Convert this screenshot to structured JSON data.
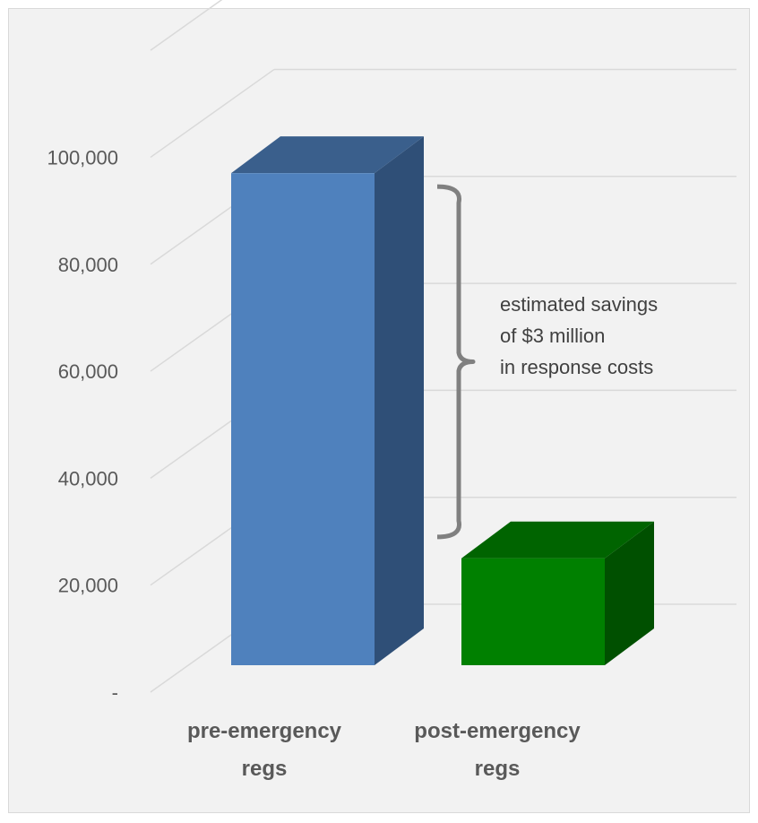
{
  "chart_data": {
    "type": "bar",
    "title": "",
    "xlabel": "",
    "ylabel": "",
    "categories": [
      {
        "line1": "pre-emergency",
        "line2": "regs"
      },
      {
        "line1": "post-emergency",
        "line2": "regs"
      }
    ],
    "values": [
      92000,
      20000
    ],
    "ylim": [
      0,
      120000
    ],
    "yticks": [
      {
        "value": 0,
        "label": "-"
      },
      {
        "value": 20000,
        "label": "20,000"
      },
      {
        "value": 40000,
        "label": "40,000"
      },
      {
        "value": 60000,
        "label": "60,000"
      },
      {
        "value": 80000,
        "label": "80,000"
      },
      {
        "value": 100000,
        "label": "100,000"
      }
    ],
    "grid": true,
    "style": "3d-column",
    "bar_colors": [
      {
        "front": "#4f81bd",
        "side": "#2f4f77",
        "top": "#3a5f8c"
      },
      {
        "front": "#008000",
        "side": "#005000",
        "top": "#006400"
      }
    ],
    "annotation": {
      "lines": [
        "estimated savings",
        "of $3 million",
        "in response costs"
      ],
      "bracket_from": 92000,
      "bracket_to": 26500,
      "bracket_color": "#808080"
    }
  }
}
